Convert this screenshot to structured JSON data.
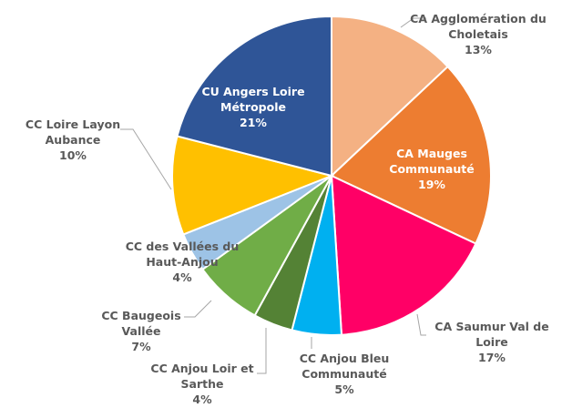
{
  "chart_data": {
    "type": "pie",
    "categories": [
      "CA Agglomération du Choletais",
      "CA Mauges Communauté",
      "CA Saumur Val de Loire",
      "CC Anjou Bleu Communauté",
      "CC Anjou Loir et Sarthe",
      "CC Baugeois Vallée",
      "CC des Vallées du Haut-Anjou",
      "CC Loire Layon Aubance",
      "CU Angers Loire Métropole"
    ],
    "values": [
      13,
      19,
      17,
      5,
      4,
      7,
      4,
      10,
      21
    ],
    "value_labels": [
      "13%",
      "19%",
      "17%",
      "5%",
      "4%",
      "7%",
      "4%",
      "10%",
      "21%"
    ],
    "colors": [
      "#f4b183",
      "#ed7d31",
      "#ff0066",
      "#00b0f0",
      "#548235",
      "#70ad47",
      "#9dc3e6",
      "#ffc000",
      "#2f5597"
    ]
  }
}
